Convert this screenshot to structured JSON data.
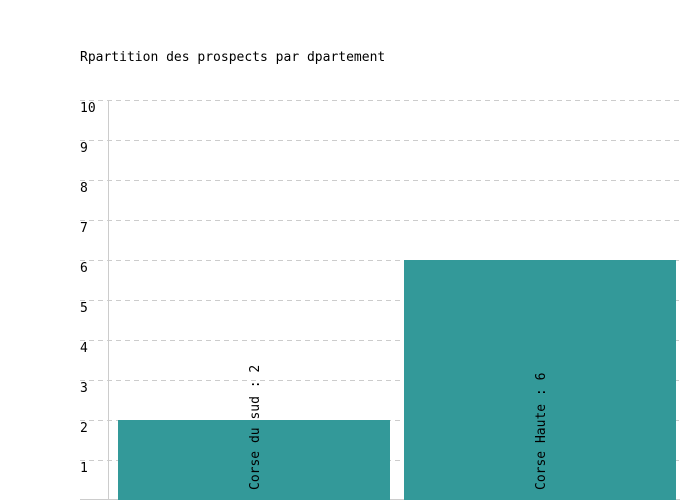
{
  "chart_data": {
    "type": "bar",
    "title": "Rpartition des prospects par dpartement",
    "categories": [
      "Corse du sud",
      "Corse Haute"
    ],
    "values": [
      2,
      6
    ],
    "data_labels": [
      "Corse du sud : 2",
      "Corse Haute : 6"
    ],
    "ylim": [
      0,
      10
    ],
    "yticks": [
      "1",
      "2",
      "3",
      "4",
      "5",
      "6",
      "7",
      "8",
      "9",
      "10"
    ],
    "grid": true,
    "xlabel": "",
    "ylabel": "",
    "bar_color": "#339999",
    "grid_color": "#cccccc"
  }
}
